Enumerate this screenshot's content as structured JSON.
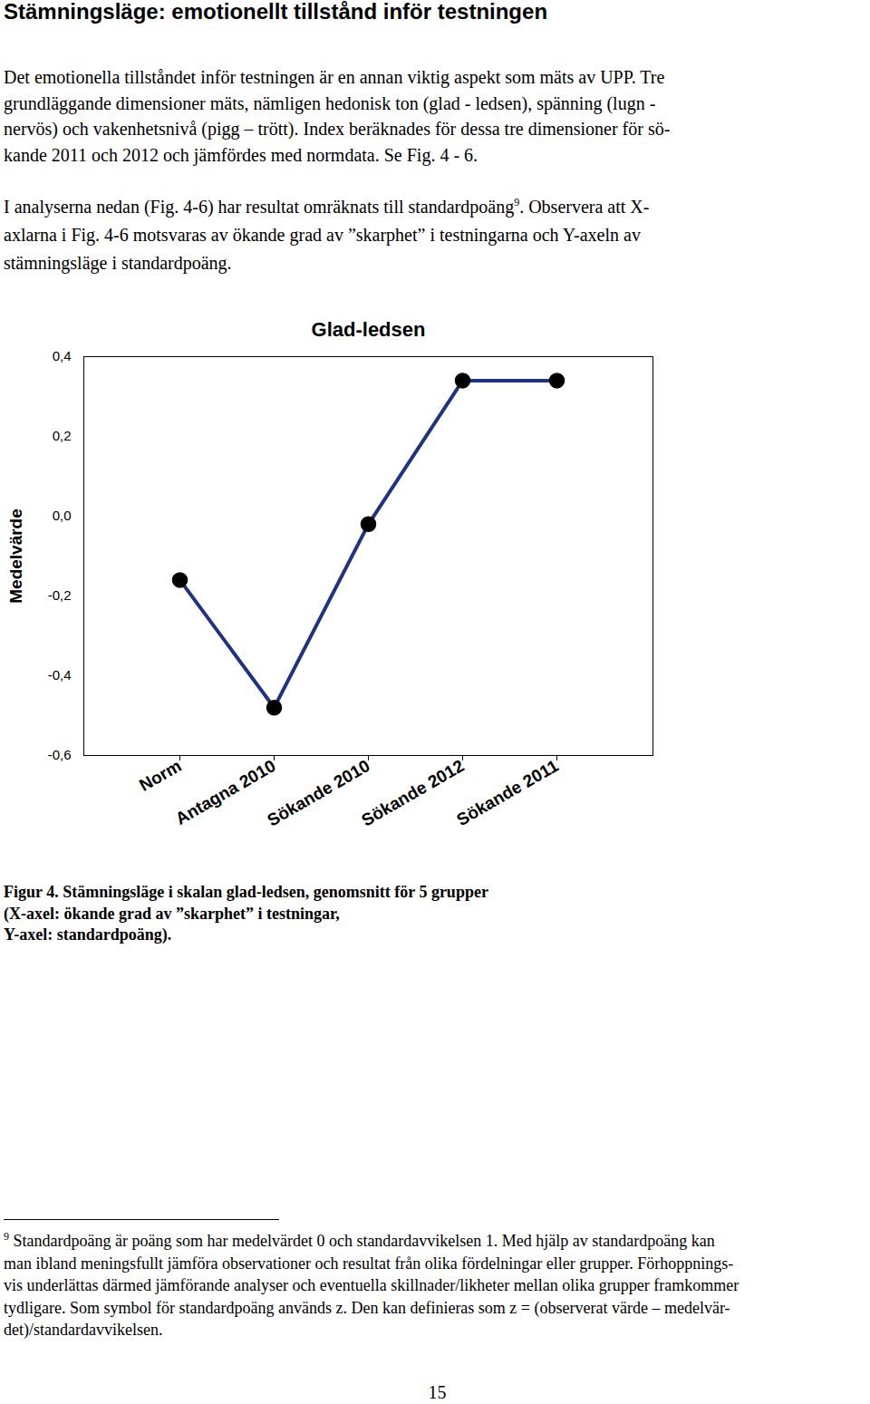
{
  "heading": "Stämningsläge: emotionellt tillstånd inför testningen",
  "paragraphs": [
    {
      "lines": [
        "Det emotionella tillståndet inför testningen är en annan viktig aspekt som mäts av UPP. Tre",
        "grundläggande dimensioner mäts, nämligen hedonisk ton (glad - ledsen), spänning (lugn -",
        "nervös) och vakenhetsnivå (pigg – trött). Index beräknades för dessa tre dimensioner för sö-",
        "kande 2011 och 2012 och jämfördes med normdata. Se Fig. 4 - 6."
      ]
    },
    {
      "lines": [
        {
          "text": "I analyserna nedan (Fig. 4-6) har resultat omräknats till standardpoäng",
          "footnote": "9",
          "rest": ". Observera att X-"
        },
        "axlarna i Fig. 4-6 motsvaras av ökande grad av ”skarphet” i testningarna och Y-axeln av",
        "stämningsläge i standardpoäng."
      ]
    }
  ],
  "chart_data": {
    "type": "line",
    "title": "Glad-ledsen",
    "ylabel": "Medelvärde",
    "categories": [
      "Norm",
      "Antagna 2010",
      "Sökande 2010",
      "Sökande 2012",
      "Sökande 2011"
    ],
    "values": [
      -0.16,
      -0.48,
      -0.02,
      0.34,
      0.34
    ],
    "color": "#1f3380",
    "marker": "circle",
    "line_style": "solid",
    "ylim": [
      -0.6,
      0.4
    ],
    "yticks": [
      {
        "value": -0.6,
        "label": "-0,6"
      },
      {
        "value": -0.4,
        "label": "-0,4"
      },
      {
        "value": -0.2,
        "label": "-0,2"
      },
      {
        "value": 0,
        "label": "0,0"
      },
      {
        "value": 0.2,
        "label": "0,2"
      },
      {
        "value": 0.4,
        "label": "0,4"
      }
    ],
    "grid": false
  },
  "caption": {
    "lines": [
      "Figur 4. Stämningsläge i skalan glad-ledsen, genomsnitt för 5 grupper",
      "(X-axel: ökande grad av ”skarphet” i testningar,",
      "Y-axel: standardpoäng)."
    ]
  },
  "footnote": {
    "mark": "9",
    "lines": [
      "Standardpoäng är poäng som har medelvärdet 0 och standardavvikelsen 1. Med hjälp av standardpoäng kan",
      "man ibland meningsfullt jämföra observationer och resultat från olika fördelningar eller grupper. Förhoppnings-",
      "vis underlättas därmed jämförande analyser och eventuella skillnader/likheter mellan olika grupper framkommer",
      "tydligare. Som symbol för standardpoäng används z. Den kan definieras som z = (observerat värde – medelvär-",
      "det)/standardavvikelsen."
    ]
  },
  "page_number": "15"
}
